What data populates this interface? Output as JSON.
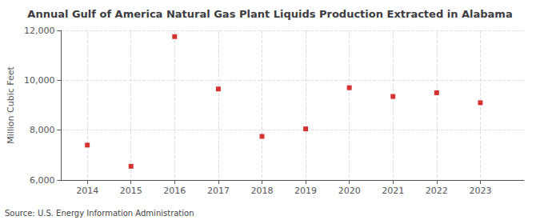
{
  "chart_data": {
    "type": "scatter",
    "title": "Annual Gulf of America Natural Gas Plant Liquids Production Extracted in Alabama",
    "ylabel": "Million Cubic Feet",
    "source": "Source: U.S. Energy Information Administration",
    "x": [
      2014,
      2015,
      2016,
      2017,
      2018,
      2019,
      2020,
      2021,
      2022,
      2023
    ],
    "values": [
      7400,
      6550,
      11750,
      9650,
      7750,
      8050,
      9700,
      9350,
      9500,
      9100
    ],
    "color": "#cc0000",
    "marker": "square",
    "xlim": [
      2013.4,
      2024.0
    ],
    "xticks": [
      2014,
      2015,
      2016,
      2017,
      2018,
      2019,
      2020,
      2021,
      2022,
      2023
    ],
    "ylim": [
      6000,
      12000
    ],
    "yticks": [
      {
        "value": 6000,
        "label": "6,000"
      },
      {
        "value": 8000,
        "label": "8,000"
      },
      {
        "value": 10000,
        "label": "10,000"
      },
      {
        "value": 12000,
        "label": "12,000"
      }
    ],
    "grid": true
  }
}
